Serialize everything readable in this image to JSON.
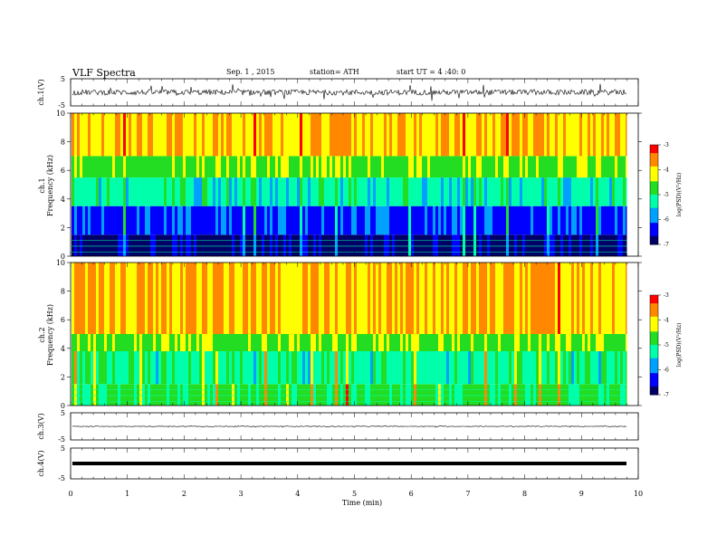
{
  "header": {
    "title": "VLF Spectra",
    "date": "Sep. 1 , 2015",
    "station": "station= ATH",
    "start": "start  UT =  4 :40: 0"
  },
  "colors": {
    "spectrum": [
      "#000066",
      "#0000ff",
      "#00a0ff",
      "#00ffaa",
      "#22dd22",
      "#ffff00",
      "#ff8800",
      "#ff0000",
      "#ff8080",
      "#ffffff"
    ],
    "trace": "#000000"
  },
  "chart_data": [
    {
      "type": "line",
      "name": "ch1-waveform",
      "ylabel": "ch.1(V)",
      "ylim": [
        -5,
        5
      ],
      "yticks": [
        "5",
        "-5"
      ],
      "baseline": 0.0,
      "amplitude": "noisy ±1.5 with spikes to ±3"
    },
    {
      "type": "heatmap",
      "name": "ch1-spectrogram",
      "ylabel": "Frequency (kHz)",
      "channel_label": "ch.1",
      "ylim": [
        0,
        10
      ],
      "yticks": [
        "0",
        "2",
        "4",
        "6",
        "8",
        "10"
      ],
      "xlim": [
        0,
        10
      ],
      "data_extent_min": 9.8,
      "bands": [
        {
          "from_khz": 0.0,
          "to_khz": 1.5,
          "level": -6.9
        },
        {
          "from_khz": 1.5,
          "to_khz": 3.5,
          "level": -6.3
        },
        {
          "from_khz": 3.5,
          "to_khz": 5.5,
          "level": -5.3
        },
        {
          "from_khz": 5.5,
          "to_khz": 7.0,
          "level": -4.6
        },
        {
          "from_khz": 7.0,
          "to_khz": 10.0,
          "level": -3.9
        }
      ],
      "colorbar": {
        "label": "log(PSD)(V²/Hz)",
        "ticks": [
          "-3",
          "-4",
          "-5",
          "-6",
          "-7"
        ],
        "range": [
          -7,
          -3
        ]
      }
    },
    {
      "type": "heatmap",
      "name": "ch2-spectrogram",
      "ylabel": "Frequency (kHz)",
      "channel_label": "ch.2",
      "ylim": [
        0,
        10
      ],
      "yticks": [
        "0",
        "2",
        "4",
        "6",
        "8",
        "10"
      ],
      "xlim": [
        0,
        10
      ],
      "data_extent_min": 9.8,
      "bands": [
        {
          "from_khz": 0.0,
          "to_khz": 1.5,
          "level": -4.8
        },
        {
          "from_khz": 1.5,
          "to_khz": 3.8,
          "level": -5.2
        },
        {
          "from_khz": 3.8,
          "to_khz": 5.0,
          "level": -4.6
        },
        {
          "from_khz": 5.0,
          "to_khz": 10.0,
          "level": -3.9
        }
      ],
      "colorbar": {
        "label": "log(PSD)(V²/Hz)",
        "ticks": [
          "-3",
          "-4",
          "-5",
          "-6",
          "-7"
        ],
        "range": [
          -7,
          -3
        ]
      }
    },
    {
      "type": "line",
      "name": "ch3-waveform",
      "ylabel": "ch.3(V)",
      "ylim": [
        -5,
        5
      ],
      "yticks": [
        "5",
        "-5"
      ],
      "baseline": 0.0,
      "amplitude": "flat, small noise"
    },
    {
      "type": "line",
      "name": "ch4-waveform",
      "ylabel": "ch.4(V)",
      "ylim": [
        -5,
        5
      ],
      "yticks": [
        "5",
        "-5"
      ],
      "baseline": 0.0,
      "amplitude": "constant thick line"
    }
  ],
  "xaxis": {
    "label": "Time (min)",
    "ticks": [
      "0",
      "1",
      "2",
      "3",
      "4",
      "5",
      "6",
      "7",
      "8",
      "9",
      "10"
    ],
    "xlim": [
      0,
      10
    ]
  }
}
